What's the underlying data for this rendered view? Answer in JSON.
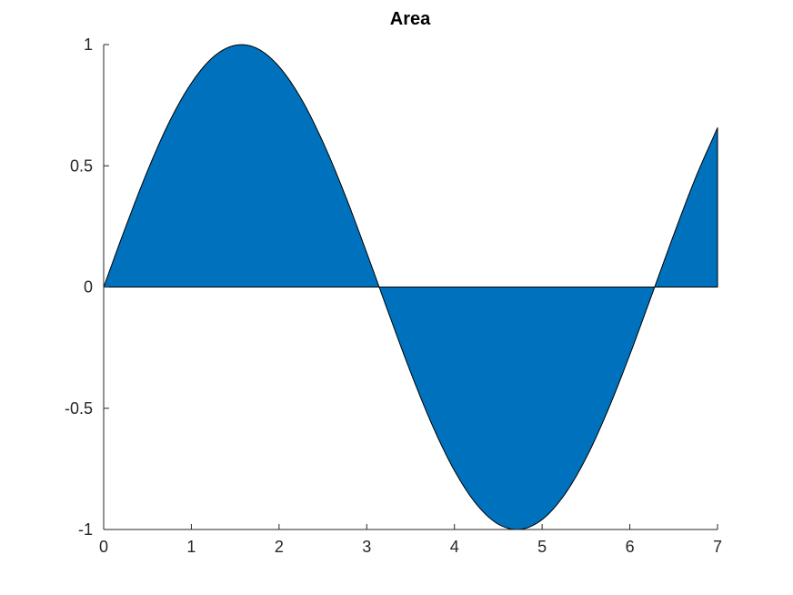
{
  "chart_data": {
    "type": "area",
    "title": "Area",
    "xlabel": "",
    "ylabel": "",
    "xlim": [
      0,
      7
    ],
    "ylim": [
      -1,
      1
    ],
    "x_ticks": [
      0,
      1,
      2,
      3,
      4,
      5,
      6,
      7
    ],
    "x_tick_labels": [
      "0",
      "1",
      "2",
      "3",
      "4",
      "5",
      "6",
      "7"
    ],
    "y_ticks": [
      -1,
      -0.5,
      0,
      0.5,
      1
    ],
    "y_tick_labels": [
      "-1",
      "-0.5",
      "0",
      "0.5",
      "1"
    ],
    "grid": false,
    "baseline": 0,
    "series": [
      {
        "color": "#0072BD",
        "edge_color": "#000000",
        "x": [
          0,
          0.25,
          0.5,
          0.75,
          1,
          1.25,
          1.5,
          1.75,
          2,
          2.25,
          2.5,
          2.75,
          3,
          3.25,
          3.5,
          3.75,
          4,
          4.25,
          4.5,
          4.75,
          5,
          5.25,
          5.5,
          5.75,
          6,
          6.25,
          6.5,
          6.75,
          7
        ],
        "values": [
          0,
          0.247,
          0.479,
          0.682,
          0.841,
          0.949,
          0.997,
          0.984,
          0.909,
          0.778,
          0.598,
          0.382,
          0.141,
          -0.108,
          -0.351,
          -0.572,
          -0.757,
          -0.895,
          -0.978,
          -0.999,
          -0.959,
          -0.859,
          -0.706,
          -0.508,
          -0.279,
          -0.033,
          0.215,
          0.451,
          0.657
        ]
      }
    ]
  }
}
